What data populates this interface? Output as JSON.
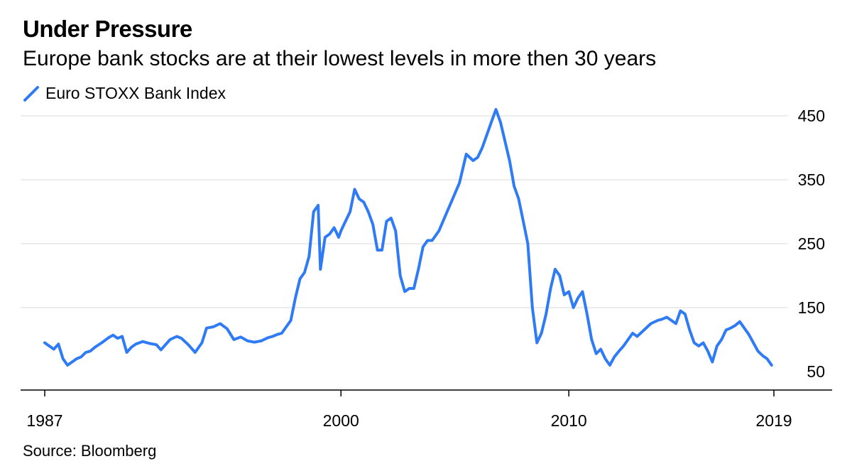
{
  "title": "Under Pressure",
  "subtitle": "Europe bank stocks are at their lowest levels in more then 30 years",
  "source": "Source: Bloomberg",
  "colors": {
    "series": "#2f7bf5",
    "grid": "#e6e6e6",
    "axis": "#000000"
  },
  "chart_data": {
    "type": "line",
    "legend": "top-left",
    "grid": true,
    "xlim": [
      1987,
      2019
    ],
    "ylim": [
      35,
      465
    ],
    "x_ticks": [
      1987,
      2000,
      2010,
      2019
    ],
    "x_tick_labels": [
      "1987",
      "2000",
      "2010",
      "2019"
    ],
    "y_ticks": [
      50,
      150,
      250,
      350,
      450
    ],
    "y_tick_labels": [
      "50",
      "150",
      "250",
      "350",
      "450"
    ],
    "series": [
      {
        "name": "Euro STOXX Bank Index",
        "x": [
          1987.0,
          1987.2,
          1987.4,
          1987.6,
          1987.8,
          1988.0,
          1988.2,
          1988.4,
          1988.6,
          1988.8,
          1989.0,
          1989.2,
          1989.5,
          1989.8,
          1990.0,
          1990.2,
          1990.4,
          1990.6,
          1990.8,
          1991.0,
          1991.3,
          1991.6,
          1991.9,
          1992.1,
          1992.3,
          1992.5,
          1992.8,
          1993.0,
          1993.3,
          1993.6,
          1993.9,
          1994.1,
          1994.4,
          1994.7,
          1995.0,
          1995.3,
          1995.6,
          1995.9,
          1996.2,
          1996.5,
          1996.8,
          1997.0,
          1997.2,
          1997.4,
          1997.6,
          1997.8,
          1998.0,
          1998.2,
          1998.4,
          1998.6,
          1998.8,
          1999.0,
          1999.1,
          1999.3,
          1999.5,
          1999.7,
          1999.9,
          2000.0,
          2000.2,
          2000.4,
          2000.6,
          2000.8,
          2001.0,
          2001.2,
          2001.4,
          2001.6,
          2001.8,
          2002.0,
          2002.2,
          2002.4,
          2002.6,
          2002.8,
          2003.0,
          2003.2,
          2003.4,
          2003.6,
          2003.8,
          2004.0,
          2004.3,
          2004.6,
          2004.9,
          2005.2,
          2005.5,
          2005.8,
          2006.0,
          2006.2,
          2006.4,
          2006.6,
          2006.8,
          2007.0,
          2007.2,
          2007.4,
          2007.6,
          2007.8,
          2008.0,
          2008.2,
          2008.4,
          2008.6,
          2008.8,
          2009.0,
          2009.2,
          2009.4,
          2009.6,
          2009.8,
          2010.0,
          2010.2,
          2010.4,
          2010.6,
          2010.8,
          2011.0,
          2011.2,
          2011.4,
          2011.6,
          2011.8,
          2012.0,
          2012.2,
          2012.4,
          2012.6,
          2012.8,
          2013.0,
          2013.3,
          2013.6,
          2013.9,
          2014.1,
          2014.3,
          2014.5,
          2014.7,
          2014.9,
          2015.1,
          2015.3,
          2015.5,
          2015.7,
          2015.9,
          2016.1,
          2016.3,
          2016.5,
          2016.7,
          2016.9,
          2017.1,
          2017.3,
          2017.5,
          2017.7,
          2017.9,
          2018.1,
          2018.3,
          2018.5,
          2018.7,
          2018.9
        ],
        "y": [
          95,
          90,
          85,
          93,
          70,
          60,
          65,
          70,
          73,
          80,
          82,
          88,
          95,
          103,
          107,
          102,
          105,
          80,
          88,
          93,
          97,
          94,
          92,
          84,
          92,
          100,
          105,
          102,
          92,
          80,
          95,
          118,
          120,
          125,
          117,
          100,
          104,
          98,
          96,
          98,
          103,
          105,
          108,
          110,
          120,
          130,
          165,
          195,
          205,
          230,
          300,
          310,
          210,
          260,
          265,
          275,
          260,
          270,
          285,
          300,
          335,
          320,
          315,
          300,
          280,
          240,
          240,
          285,
          290,
          270,
          200,
          175,
          180,
          180,
          210,
          245,
          255,
          255,
          270,
          295,
          320,
          345,
          390,
          380,
          385,
          400,
          420,
          440,
          460,
          440,
          410,
          380,
          340,
          320,
          285,
          250,
          150,
          95,
          110,
          140,
          180,
          210,
          200,
          170,
          175,
          150,
          165,
          175,
          140,
          100,
          78,
          85,
          70,
          60,
          73,
          82,
          90,
          100,
          110,
          105,
          115,
          125,
          130,
          132,
          135,
          130,
          125,
          145,
          140,
          115,
          95,
          90,
          95,
          82,
          65,
          90,
          100,
          115,
          118,
          122,
          128,
          118,
          108,
          95,
          82,
          75,
          70,
          60
        ]
      }
    ]
  }
}
